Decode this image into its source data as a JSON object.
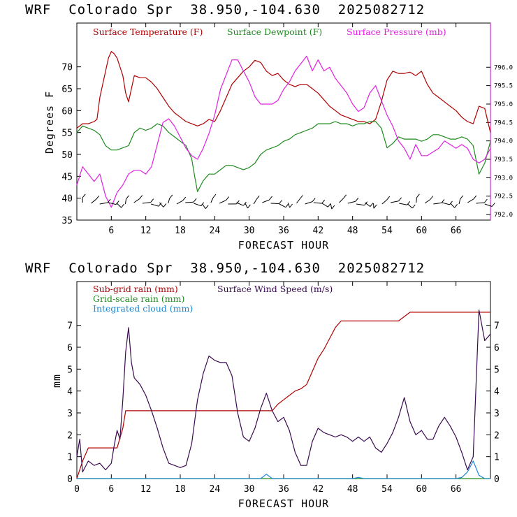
{
  "charts": [
    {
      "title": "WRF  Colorado Spr  38.950,-104.630  2025082712",
      "xlabel": "FORECAST HOUR",
      "ylabel": "Degrees F",
      "xlim": [
        0,
        72
      ],
      "ylim": [
        35,
        80
      ],
      "x_ticks": [
        "6",
        "12",
        "18",
        "24",
        "30",
        "36",
        "42",
        "48",
        "54",
        "60",
        "66"
      ],
      "y_ticks": [
        "35",
        "40",
        "45",
        "50",
        "55",
        "60",
        "65",
        "70"
      ],
      "y2lim": [
        791.85,
        797.2
      ],
      "y2_ticks": [
        "792.0",
        "792.5",
        "793.0",
        "793.5",
        "794.0",
        "794.5",
        "795.0",
        "795.5",
        "796.0"
      ],
      "legend": [
        {
          "label": "Surface Temperature (F)",
          "color": "#b00000"
        },
        {
          "label": "Surface Dewpoint (F)",
          "color": "#1e8a1e"
        },
        {
          "label": "Surface Pressure (mb)",
          "color": "#e020e0"
        }
      ]
    },
    {
      "title": "WRF  Colorado Spr  38.950,-104.630  2025082712",
      "xlabel": "FORECAST HOUR",
      "ylabel": "mm",
      "xlim": [
        0,
        72
      ],
      "ylim": [
        0,
        9
      ],
      "x_ticks": [
        "0",
        "6",
        "12",
        "18",
        "24",
        "30",
        "36",
        "42",
        "48",
        "54",
        "60",
        "66"
      ],
      "y_ticks": [
        "0",
        "1",
        "2",
        "3",
        "4",
        "5",
        "6",
        "7"
      ],
      "y2_ticks": [
        "0",
        "1",
        "2",
        "3",
        "4",
        "5",
        "6",
        "7"
      ],
      "legend": [
        {
          "label": "Sub-grid rain (mm)",
          "color": "#b00000"
        },
        {
          "label": "Surface Wind Speed (m/s)",
          "color": "#3a0a50"
        },
        {
          "label": "Grid-scale rain (mm)",
          "color": "#1e8a1e"
        },
        {
          "label": "Integrated cloud (mm)",
          "color": "#1e88d0"
        }
      ]
    }
  ],
  "chart_data": [
    {
      "type": "line",
      "title": "WRF  Colorado Spr  38.950,-104.630  2025082712",
      "xlabel": "FORECAST HOUR",
      "ylabel": "Degrees F",
      "xlim": [
        0,
        72
      ],
      "ylim": [
        35,
        80
      ],
      "y2lim": [
        791.85,
        797.2
      ],
      "grid": false,
      "legend_position": "top",
      "series": [
        {
          "name": "Surface Temperature (F)",
          "axis": "left",
          "color": "#b00000",
          "x": [
            0,
            1,
            2,
            3,
            3.5,
            4,
            5,
            5.5,
            6,
            6.5,
            7,
            7.5,
            8,
            8.5,
            9,
            9.5,
            10,
            11,
            12,
            13,
            14,
            15,
            16,
            17,
            18,
            19,
            20,
            21,
            22,
            23,
            24,
            25,
            26,
            27,
            28,
            29,
            30,
            31,
            32,
            33,
            34,
            35,
            36,
            37,
            38,
            39,
            40,
            41,
            42,
            43,
            44,
            45,
            46,
            47,
            48,
            49,
            50,
            51,
            52,
            53,
            54,
            55,
            56,
            57,
            58,
            59,
            60,
            61,
            62,
            63,
            64,
            65,
            66,
            67,
            68,
            69,
            70,
            71,
            72
          ],
          "y": [
            56,
            57,
            57,
            57.5,
            58,
            63,
            69,
            72,
            73.5,
            73,
            72,
            70,
            68,
            64,
            62,
            65,
            68,
            67.5,
            67.5,
            66.5,
            65,
            63,
            61,
            59.5,
            58.5,
            57.5,
            57,
            56.5,
            57,
            58,
            57.5,
            60,
            63,
            66,
            67.5,
            69,
            70,
            71.5,
            71,
            69,
            68,
            68.5,
            67,
            66,
            65.5,
            66,
            66,
            65,
            64,
            62.5,
            61,
            60,
            59,
            58.5,
            58,
            57.5,
            57.5,
            57,
            58,
            62,
            67,
            69,
            68.5,
            68.5,
            68.8,
            68,
            69,
            66,
            64,
            63,
            62,
            61,
            60,
            58.5,
            57.5,
            57,
            61,
            60.5,
            55
          ]
        },
        {
          "name": "Surface Dewpoint (F)",
          "axis": "left",
          "color": "#1e8a1e",
          "x": [
            0,
            1,
            2,
            3,
            4,
            5,
            6,
            7,
            8,
            9,
            10,
            11,
            12,
            13,
            14,
            15,
            16,
            17,
            18,
            19,
            20,
            20.5,
            21,
            22,
            23,
            24,
            25,
            26,
            27,
            28,
            29,
            30,
            31,
            32,
            33,
            34,
            35,
            36,
            37,
            38,
            39,
            40,
            41,
            42,
            43,
            44,
            45,
            46,
            47,
            48,
            49,
            50,
            51,
            52,
            53,
            54,
            55,
            56,
            57,
            58,
            59,
            60,
            61,
            62,
            63,
            64,
            65,
            66,
            67,
            68,
            69,
            70,
            71,
            72
          ],
          "y": [
            55,
            56.5,
            56,
            55.5,
            54.5,
            52,
            51,
            51,
            51.5,
            52,
            55,
            56,
            55.5,
            56,
            57,
            56.5,
            55,
            54,
            53,
            52,
            49,
            45,
            41.5,
            44,
            45.5,
            45.5,
            46.5,
            47.5,
            47.5,
            47,
            46.5,
            47,
            48,
            50,
            51,
            51.5,
            52,
            53,
            53.5,
            54.5,
            55,
            55.5,
            56,
            57,
            57,
            57,
            57.5,
            57,
            57,
            56.5,
            57,
            57,
            57.5,
            57.5,
            56,
            51.5,
            52.5,
            54,
            53.5,
            53.5,
            53.5,
            53,
            53.5,
            54.5,
            54.5,
            54,
            53.5,
            53.5,
            54,
            53.5,
            52,
            45.5,
            48,
            53
          ]
        },
        {
          "name": "Surface Pressure (mb)",
          "axis": "right",
          "color": "#e020e0",
          "x": [
            0,
            1,
            2,
            3,
            4,
            5,
            6,
            7,
            8,
            9,
            10,
            11,
            12,
            13,
            14,
            15,
            16,
            17,
            18,
            19,
            20,
            21,
            22,
            23,
            24,
            25,
            26,
            27,
            28,
            29,
            30,
            31,
            32,
            33,
            34,
            35,
            36,
            37,
            38,
            39,
            40,
            41,
            42,
            43,
            44,
            45,
            46,
            47,
            48,
            49,
            50,
            51,
            52,
            53,
            54,
            55,
            56,
            57,
            58,
            59,
            60,
            61,
            62,
            63,
            64,
            65,
            66,
            67,
            68,
            69,
            70,
            71,
            72
          ],
          "y": [
            792.8,
            793.3,
            793.1,
            792.9,
            793.1,
            792.5,
            792.2,
            792.6,
            792.8,
            793.1,
            793.2,
            793.2,
            793.1,
            793.3,
            793.9,
            794.5,
            794.6,
            794.4,
            794.1,
            793.8,
            793.6,
            793.5,
            793.8,
            794.2,
            794.7,
            795.4,
            795.8,
            796.2,
            796.2,
            795.9,
            795.6,
            795.2,
            795.0,
            795.0,
            795.0,
            795.1,
            795.4,
            795.6,
            795.9,
            796.1,
            796.3,
            795.9,
            796.2,
            795.9,
            796.0,
            795.7,
            795.5,
            795.3,
            795.0,
            794.8,
            794.9,
            795.3,
            795.5,
            795.1,
            794.7,
            794.4,
            794.0,
            793.8,
            793.5,
            793.9,
            793.6,
            793.6,
            793.7,
            793.8,
            794.0,
            793.9,
            793.8,
            793.9,
            793.8,
            793.5,
            793.4,
            793.5,
            793.8
          ]
        }
      ],
      "wind_barbs": {
        "count": 48,
        "from_hour": 1,
        "to_hour": 71
      }
    },
    {
      "type": "line",
      "title": "WRF  Colorado Spr  38.950,-104.630  2025082712",
      "xlabel": "FORECAST HOUR",
      "ylabel": "mm",
      "xlim": [
        0,
        72
      ],
      "ylim": [
        0,
        9
      ],
      "grid": false,
      "legend_position": "top",
      "series": [
        {
          "name": "Sub-grid rain (mm)",
          "color": "#b00000",
          "x": [
            0,
            1,
            2,
            7,
            8,
            8.5,
            33,
            34,
            35,
            36,
            37,
            38,
            39,
            40,
            41,
            42,
            43,
            44,
            45,
            46,
            56,
            57,
            58,
            70,
            71,
            72
          ],
          "y": [
            0,
            0.8,
            1.4,
            1.4,
            2.3,
            3.1,
            3.1,
            3.1,
            3.4,
            3.6,
            3.8,
            4.0,
            4.1,
            4.3,
            4.9,
            5.5,
            5.9,
            6.4,
            6.9,
            7.2,
            7.2,
            7.4,
            7.6,
            7.6,
            7.6,
            7.6
          ]
        },
        {
          "name": "Surface Wind Speed (m/s)",
          "color": "#3a0a50",
          "x": [
            0,
            0.5,
            1,
            2,
            3,
            4,
            5,
            6,
            6.5,
            7,
            7.5,
            8,
            8.5,
            9,
            9.5,
            10,
            11,
            12,
            13,
            14,
            15,
            16,
            17,
            18,
            19,
            20,
            21,
            22,
            23,
            24,
            25,
            26,
            27,
            28,
            29,
            30,
            31,
            32,
            33,
            34,
            35,
            36,
            37,
            38,
            39,
            40,
            41,
            42,
            43,
            44,
            45,
            46,
            47,
            48,
            49,
            50,
            51,
            52,
            53,
            54,
            55,
            56,
            57,
            58,
            59,
            60,
            61,
            62,
            63,
            64,
            65,
            66,
            67,
            68,
            69,
            70,
            71,
            72
          ],
          "y": [
            1,
            1.8,
            0.3,
            0.8,
            0.6,
            0.7,
            0.4,
            0.7,
            1.5,
            2.2,
            1.8,
            3.6,
            5.8,
            6.9,
            5.3,
            4.6,
            4.3,
            3.8,
            3.1,
            2.3,
            1.4,
            0.7,
            0.6,
            0.5,
            0.6,
            1.6,
            3.6,
            4.8,
            5.6,
            5.4,
            5.3,
            5.3,
            4.7,
            3.0,
            1.9,
            1.7,
            2.3,
            3.2,
            3.9,
            3.1,
            2.6,
            2.8,
            2.2,
            1.2,
            0.6,
            0.6,
            1.7,
            2.3,
            2.1,
            2.0,
            1.9,
            2.0,
            1.9,
            1.7,
            1.9,
            1.7,
            1.9,
            1.4,
            1.2,
            1.6,
            2.1,
            2.8,
            3.7,
            2.6,
            2.0,
            2.2,
            1.8,
            1.8,
            2.4,
            2.8,
            2.4,
            1.9,
            1.2,
            0.4,
            1.0,
            7.7,
            6.3,
            6.6
          ]
        },
        {
          "name": "Grid-scale rain (mm)",
          "color": "#1e8a1e",
          "x": [
            0,
            72
          ],
          "y": [
            0,
            0
          ]
        },
        {
          "name": "Integrated cloud (mm)",
          "color": "#1e88d0",
          "x": [
            0,
            32,
            33,
            34,
            48,
            49,
            50,
            66,
            67,
            68,
            69,
            70,
            71,
            72
          ],
          "y": [
            0,
            0,
            0.2,
            0,
            0,
            0.05,
            0,
            0,
            0.05,
            0.3,
            0.8,
            0.15,
            0,
            0
          ]
        }
      ]
    }
  ]
}
